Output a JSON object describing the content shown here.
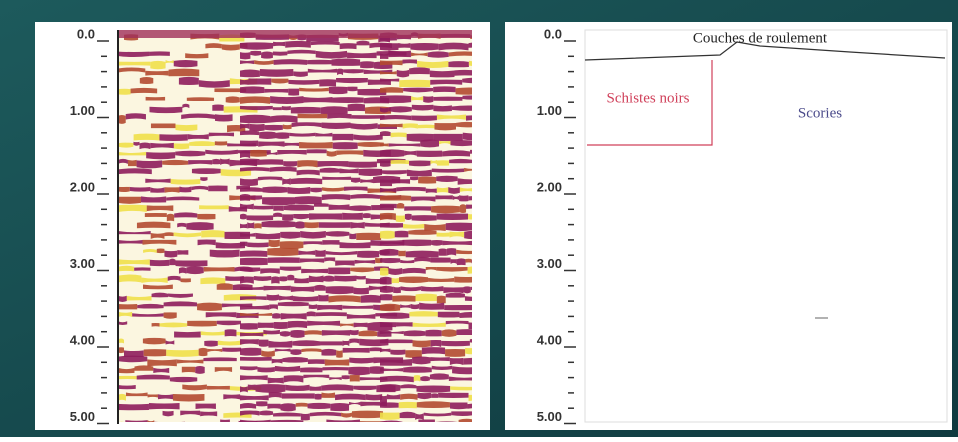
{
  "left_panel": {
    "depth_labels": [
      "0.0",
      "1.00",
      "2.00",
      "3.00",
      "4.00",
      "5.00"
    ]
  },
  "right_panel": {
    "depth_labels": [
      "0.0",
      "1.00",
      "2.00",
      "3.00",
      "4.00",
      "5.00"
    ],
    "annotations": {
      "surface": "Couches de roulement",
      "left_unit": "Schistes noirs",
      "right_unit": "Scories"
    }
  }
}
